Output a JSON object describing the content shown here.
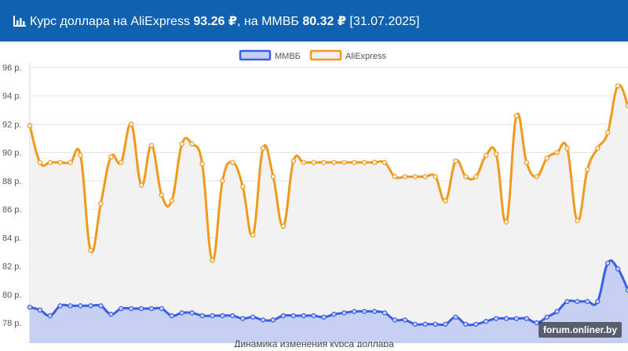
{
  "header": {
    "icon": "bar-chart-icon",
    "text_prefix": "Курс доллара на AliExpress ",
    "ali_rate": "93.26 ₽",
    "text_mid": ", на ММВБ ",
    "mmvb_rate": "80.32 ₽",
    "date": " [31.07.2025]"
  },
  "watermark": "forum.onliner.by",
  "colors": {
    "header_bg": "#0f62b0",
    "mmvb_line": "#3b5ee6",
    "mmvb_fill": "#c6d0f3",
    "ali_line": "#ef9a1c",
    "ali_fill": "#f2f2f2"
  },
  "chart_data": {
    "type": "line",
    "title": "",
    "xlabel": "Динамика изменения курса доллара",
    "ylabel": "",
    "ylim": [
      77,
      96
    ],
    "yticks": [
      78,
      80,
      82,
      84,
      86,
      88,
      90,
      92,
      94,
      96
    ],
    "ytick_labels": [
      "78 р.",
      "80 р.",
      "82 р.",
      "84 р.",
      "86 р.",
      "88 р.",
      "90 р.",
      "92 р.",
      "94 р.",
      "96 р."
    ],
    "grid": true,
    "legend_position": "top-center",
    "series": [
      {
        "name": "ММВБ",
        "values": [
          79.1,
          78.9,
          78.5,
          79.2,
          79.2,
          79.2,
          79.2,
          79.2,
          78.6,
          79.0,
          79.0,
          79.0,
          79.0,
          79.0,
          78.5,
          78.7,
          78.7,
          78.5,
          78.5,
          78.5,
          78.5,
          78.3,
          78.4,
          78.2,
          78.2,
          78.5,
          78.5,
          78.5,
          78.5,
          78.4,
          78.6,
          78.7,
          78.8,
          78.8,
          78.8,
          78.7,
          78.2,
          78.2,
          77.9,
          77.9,
          77.9,
          77.9,
          78.4,
          77.9,
          77.9,
          78.1,
          78.3,
          78.3,
          78.3,
          78.3,
          78.0,
          78.4,
          78.8,
          79.5,
          79.5,
          79.5,
          79.5,
          82.2,
          81.8,
          80.3
        ]
      },
      {
        "name": "AliExpress",
        "values": [
          91.9,
          89.3,
          89.3,
          89.3,
          89.3,
          89.8,
          83.1,
          86.4,
          89.7,
          89.3,
          92.0,
          87.7,
          90.5,
          87.0,
          86.6,
          90.6,
          90.6,
          89.2,
          82.4,
          88.0,
          89.3,
          87.6,
          84.2,
          90.3,
          88.3,
          84.8,
          89.4,
          89.3,
          89.3,
          89.3,
          89.3,
          89.3,
          89.3,
          89.3,
          89.3,
          89.3,
          88.3,
          88.3,
          88.3,
          88.3,
          88.3,
          86.6,
          89.4,
          88.3,
          88.3,
          89.8,
          89.9,
          85.1,
          92.6,
          89.3,
          88.3,
          89.6,
          90.0,
          90.3,
          85.2,
          88.8,
          90.3,
          91.4,
          94.7,
          93.3
        ]
      }
    ]
  }
}
